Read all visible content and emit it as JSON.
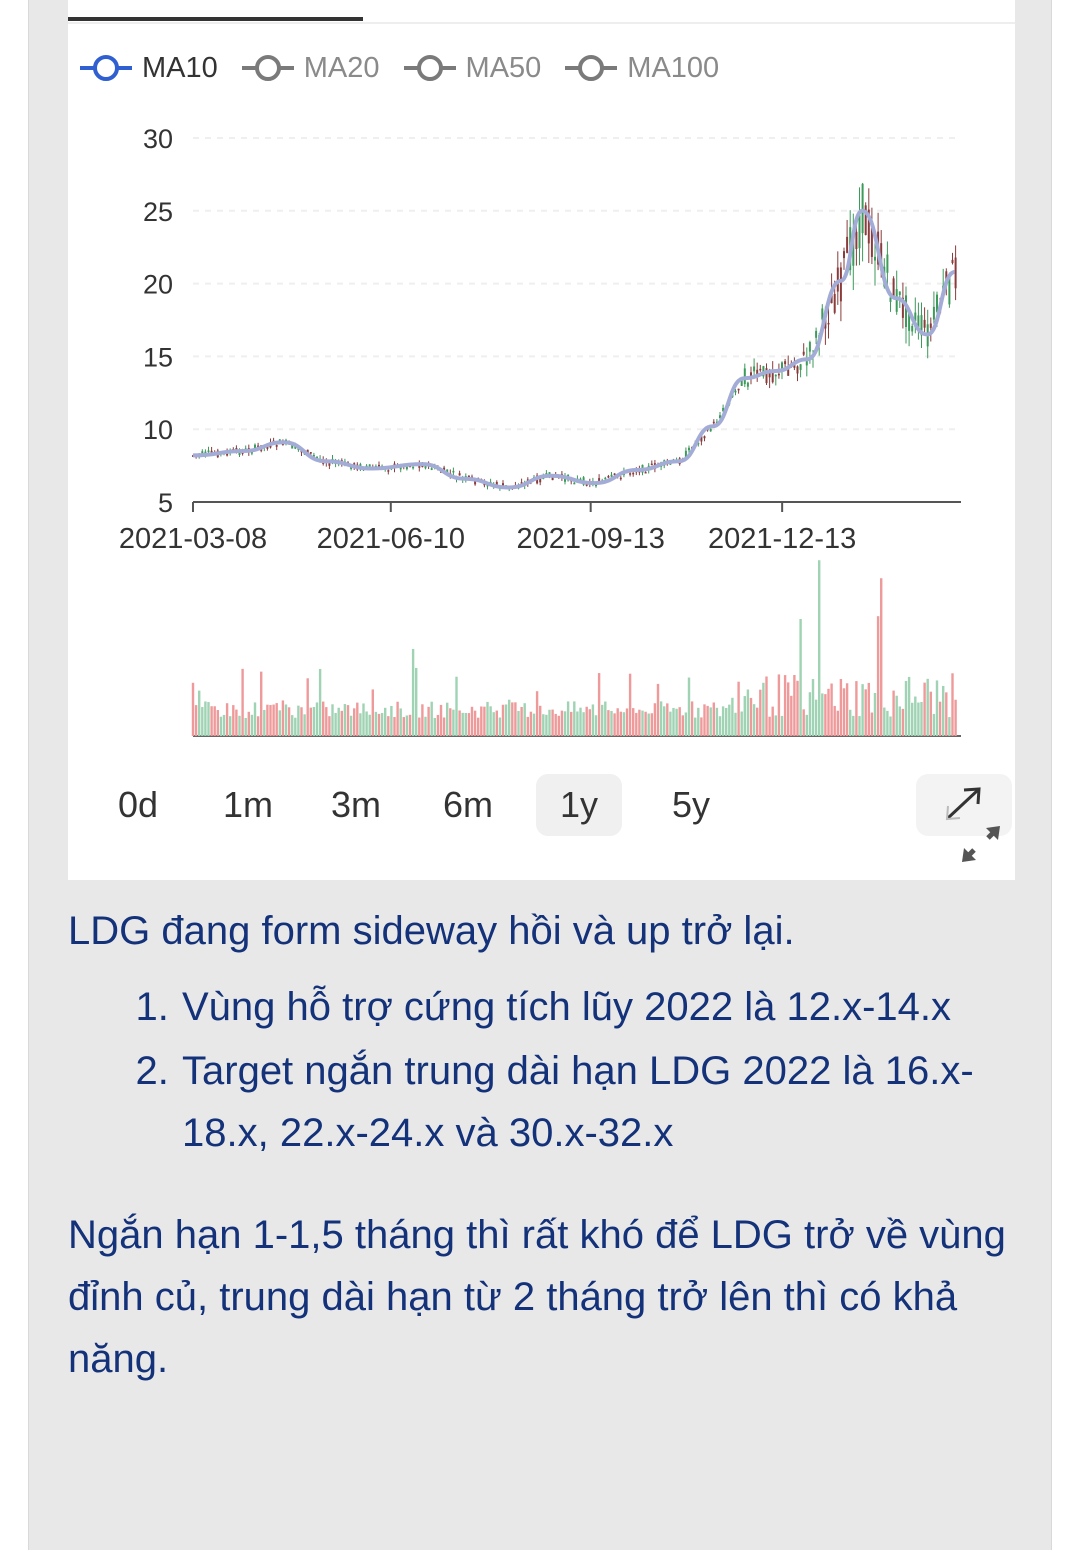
{
  "legend": [
    {
      "label": "MA10",
      "active": true
    },
    {
      "label": "MA20",
      "active": false
    },
    {
      "label": "MA50",
      "active": false
    },
    {
      "label": "MA100",
      "active": false
    }
  ],
  "chart_data": [
    {
      "type": "candlestick",
      "title": "",
      "ylim": [
        5,
        30
      ],
      "yticks": [
        "30",
        "25",
        "20",
        "15",
        "10",
        "5"
      ],
      "xticks": [
        "2021-03-08",
        "2021-06-10",
        "2021-09-13",
        "2021-12-13"
      ],
      "grid": true,
      "series": [
        {
          "name": "MA10",
          "color": "#a3acd6",
          "x": [
            "2021-03-08",
            "2021-04-01",
            "2021-04-20",
            "2021-05-10",
            "2021-06-01",
            "2021-06-25",
            "2021-07-15",
            "2021-08-05",
            "2021-08-25",
            "2021-09-15",
            "2021-10-05",
            "2021-10-25",
            "2021-11-10",
            "2021-11-25",
            "2021-12-10",
            "2021-12-25",
            "2022-01-10",
            "2022-01-20",
            "2022-02-05",
            "2022-02-20",
            "2022-03-05"
          ],
          "values": [
            8.2,
            8.5,
            9.1,
            7.8,
            7.3,
            7.6,
            6.6,
            6.0,
            6.8,
            6.3,
            7.2,
            7.8,
            10.2,
            13.5,
            14.0,
            14.8,
            20.2,
            25.0,
            19.0,
            16.5,
            20.8
          ]
        }
      ],
      "candle_colors": {
        "up": "#3c9a5a",
        "down": "#8a3b3b"
      }
    },
    {
      "type": "bar",
      "title": "",
      "series_colors": {
        "up": "#9fd3b3",
        "down": "#ef9a9a"
      },
      "grid": false
    }
  ],
  "range_options": [
    "0d",
    "1m",
    "3m",
    "6m",
    "1y",
    "5y"
  ],
  "selected_range": "1y",
  "post": {
    "intro": "LDG đang form sideway hồi và up trở lại.",
    "points": [
      "Vùng hỗ trợ cứng tích lũy 2022 là 12.x-14.x",
      "Target ngắn trung dài hạn LDG 2022 là 16.x-18.x, 22.x-24.x và 30.x-32.x"
    ],
    "closing": "Ngắn hạn 1-1,5 tháng thì rất khó để LDG trở về vùng đỉnh củ, trung dài hạn từ 2 tháng trở lên thì có khả năng."
  }
}
